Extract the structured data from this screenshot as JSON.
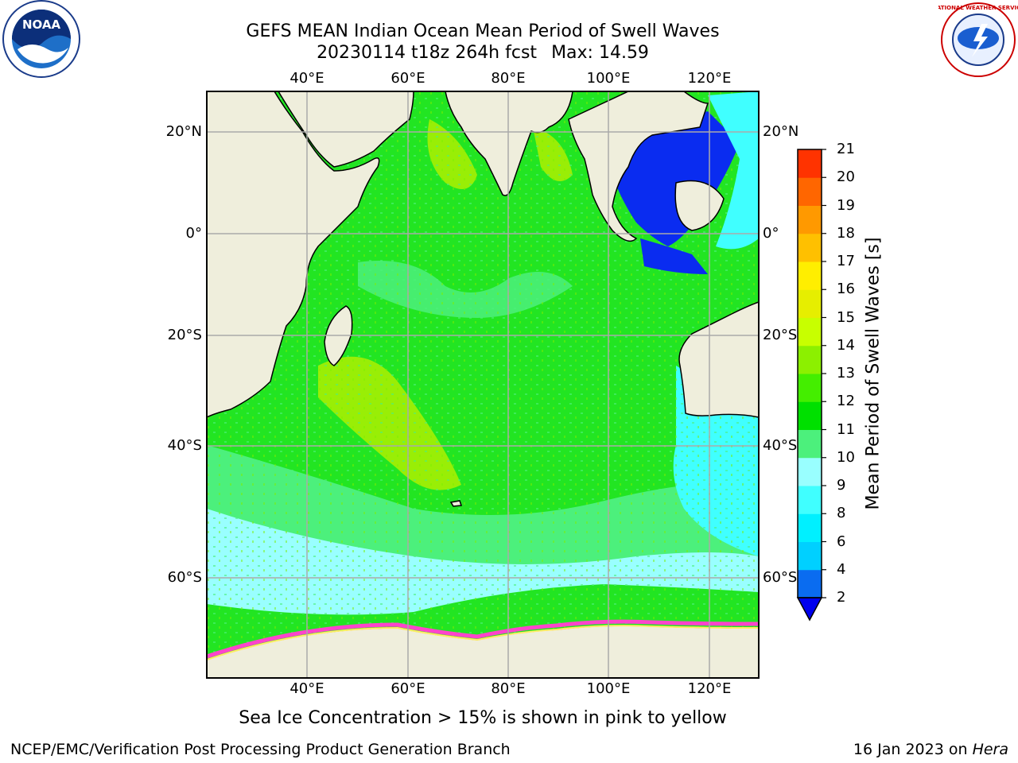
{
  "title": {
    "line1": "GEFS MEAN Indian Ocean Mean Period of Swell Waves",
    "line2_run": "20230114 t18z 264h fcst",
    "line2_max": "Max: 14.59"
  },
  "axes": {
    "lon_labels": [
      "40°E",
      "60°E",
      "80°E",
      "100°E",
      "120°E"
    ],
    "lat_labels": [
      "20°N",
      "0°",
      "20°S",
      "40°S",
      "60°S"
    ]
  },
  "colorbar": {
    "label": "Mean Period of Swell Waves [s]",
    "ticks": [
      "2",
      "4",
      "6",
      "8",
      "9",
      "10",
      "11",
      "12",
      "13",
      "14",
      "15",
      "16",
      "17",
      "18",
      "19",
      "20",
      "21"
    ],
    "colors": [
      "#0a6cf0",
      "#00d0ff",
      "#00f0ff",
      "#40ffff",
      "#99ffff",
      "#4cf07c",
      "#00e000",
      "#44ee00",
      "#8cf000",
      "#c8ff00",
      "#e6ee00",
      "#ffee00",
      "#ffc000",
      "#ff9900",
      "#ff6600",
      "#ff3300",
      "#ff0000"
    ],
    "extend_color": "#0000ee"
  },
  "caption": "Sea Ice Concentration > 15% is shown in pink to yellow",
  "footer": {
    "left": "NCEP/EMC/Verification Post Processing Product Generation Branch",
    "right_date": "16 Jan 2023 on ",
    "right_host": "Hera"
  },
  "logos": {
    "noaa_text": "NOAA",
    "nws_text": "NATIONAL WEATHER SERVICE"
  },
  "map_colors": {
    "land": "#efeedc",
    "ocean_main": "#22e522",
    "swell_low": "#4cf07c",
    "swell_cyan": "#99ffff",
    "swell_aqua": "#40ffff",
    "swell_high": "#b8f000",
    "swell_blue": "#0a2cf0",
    "ice": "#ff44cc"
  }
}
